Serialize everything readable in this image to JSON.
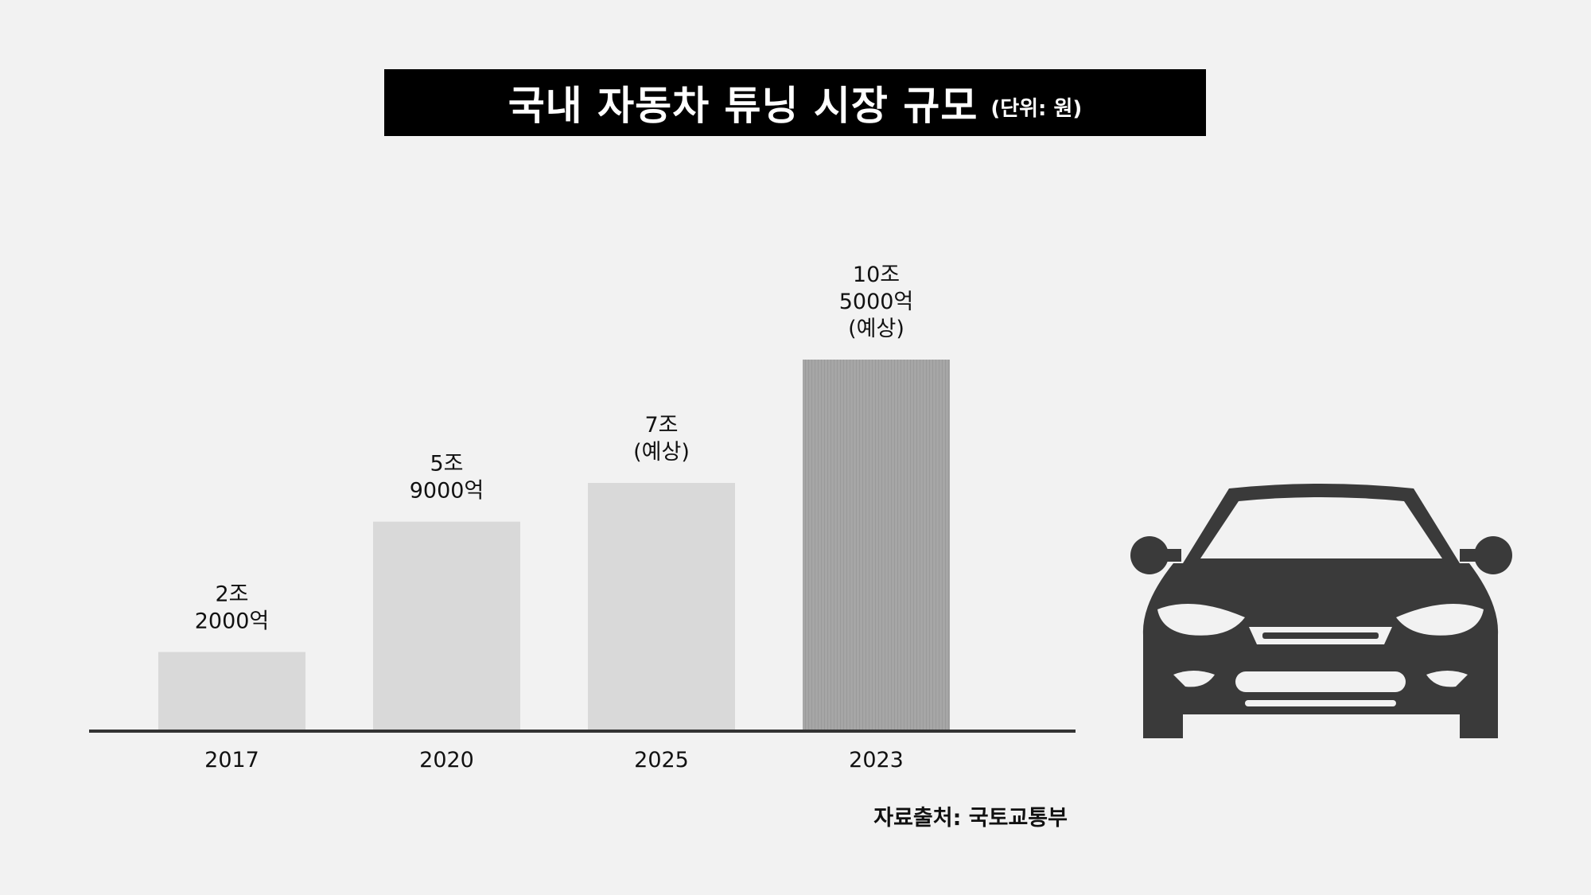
{
  "header": {
    "title": "국내 자동차 튜닝 시장 규모",
    "unit": "(단위: 원)"
  },
  "chart_data": {
    "type": "bar",
    "title": "국내 자동차 튜닝 시장 규모",
    "unit": "(단위: 원)",
    "categories": [
      "2017",
      "2020",
      "2025",
      "2023"
    ],
    "values": [
      22000,
      59000,
      70000,
      105000
    ],
    "value_unit": "억원",
    "data_labels": [
      [
        "2조",
        "2000억"
      ],
      [
        "5조",
        "9000억"
      ],
      [
        "7조",
        "(예상)"
      ],
      [
        "10조",
        "5000억",
        "(예상)"
      ]
    ],
    "bar_colors": [
      "#d9d9d9",
      "#d9d9d9",
      "#d9d9d9",
      "#a6a6a6"
    ],
    "ylim": [
      0,
      105000
    ],
    "grid": false,
    "legend": "none",
    "xlabel": "",
    "ylabel": ""
  },
  "footer": {
    "source": "자료출처: 국토교통부"
  },
  "illustration": {
    "icon": "car-front-icon",
    "color": "#3a3a3a"
  }
}
